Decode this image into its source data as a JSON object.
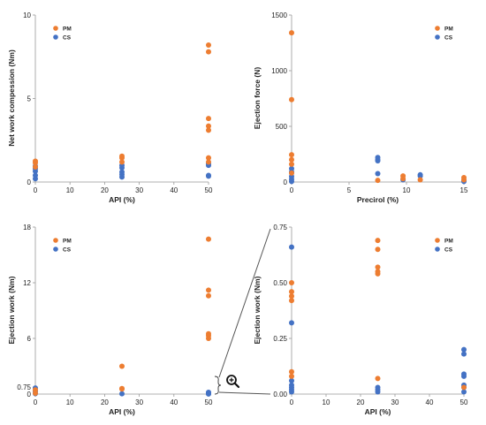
{
  "colors": {
    "pm": "#ED7D31",
    "cs": "#4472C4",
    "axis": "#999999"
  },
  "chart_data": [
    {
      "type": "scatter",
      "xlabel": "API (%)",
      "ylabel": "Net work compession (Nm)",
      "xlim": [
        0,
        50
      ],
      "ylim": [
        0,
        10
      ],
      "xticks": [
        0,
        10,
        20,
        30,
        40,
        50
      ],
      "yticks": [
        0,
        5,
        10
      ],
      "legend_position": "top-left",
      "series": [
        {
          "name": "PM",
          "color": "#ED7D31",
          "points": [
            [
              0,
              1.15
            ],
            [
              0,
              1.25
            ],
            [
              0,
              0.9
            ],
            [
              25,
              1.2
            ],
            [
              25,
              1.45
            ],
            [
              25,
              1.55
            ],
            [
              50,
              8.2
            ],
            [
              50,
              7.8
            ],
            [
              50,
              3.8
            ],
            [
              50,
              3.35
            ],
            [
              50,
              3.1
            ],
            [
              50,
              1.45
            ],
            [
              50,
              1.2
            ]
          ]
        },
        {
          "name": "CS",
          "color": "#4472C4",
          "points": [
            [
              0,
              0.95
            ],
            [
              0,
              0.8
            ],
            [
              0,
              0.65
            ],
            [
              0,
              0.4
            ],
            [
              0,
              0.2
            ],
            [
              25,
              1.0
            ],
            [
              25,
              0.85
            ],
            [
              25,
              0.6
            ],
            [
              25,
              0.45
            ],
            [
              25,
              0.3
            ],
            [
              50,
              1.1
            ],
            [
              50,
              1.0
            ],
            [
              50,
              0.4
            ],
            [
              50,
              0.35
            ]
          ]
        }
      ]
    },
    {
      "type": "scatter",
      "xlabel": "Precirol (%)",
      "ylabel": "Ejection force (N)",
      "xlim": [
        0,
        15
      ],
      "ylim": [
        0,
        1500
      ],
      "xticks": [
        0,
        5,
        10,
        15
      ],
      "yticks": [
        0,
        500,
        1000,
        1500
      ],
      "legend_position": "top-right",
      "series": [
        {
          "name": "PM",
          "color": "#ED7D31",
          "points": [
            [
              0,
              1340
            ],
            [
              0,
              740
            ],
            [
              0,
              245
            ],
            [
              0,
              200
            ],
            [
              0,
              160
            ],
            [
              0,
              80
            ],
            [
              7.5,
              15
            ],
            [
              9.7,
              55
            ],
            [
              9.7,
              30
            ],
            [
              11.2,
              20
            ],
            [
              15,
              40
            ],
            [
              15,
              20
            ]
          ]
        },
        {
          "name": "CS",
          "color": "#4472C4",
          "points": [
            [
              0,
              120
            ],
            [
              0,
              90
            ],
            [
              0,
              50
            ],
            [
              0,
              25
            ],
            [
              0,
              5
            ],
            [
              7.5,
              220
            ],
            [
              7.5,
              200
            ],
            [
              7.5,
              190
            ],
            [
              7.5,
              75
            ],
            [
              9.7,
              20
            ],
            [
              11.2,
              65
            ],
            [
              11.2,
              55
            ],
            [
              15,
              15
            ],
            [
              15,
              5
            ]
          ]
        }
      ]
    },
    {
      "type": "scatter",
      "xlabel": "API (%)",
      "ylabel": "Ejection work (Nm)",
      "xlim": [
        0,
        50
      ],
      "ylim": [
        0,
        18
      ],
      "xticks": [
        0,
        10,
        20,
        30,
        40,
        50
      ],
      "yticks": [
        0,
        0.75,
        6,
        12,
        18
      ],
      "legend_position": "top-left",
      "series": [
        {
          "name": "PM",
          "color": "#ED7D31",
          "points": [
            [
              0,
              0.45
            ],
            [
              0,
              0.1
            ],
            [
              25,
              3.0
            ],
            [
              25,
              0.6
            ],
            [
              25,
              0.55
            ],
            [
              50,
              16.7
            ],
            [
              50,
              11.2
            ],
            [
              50,
              10.6
            ],
            [
              50,
              6.5
            ],
            [
              50,
              6.3
            ],
            [
              50,
              6.0
            ]
          ]
        },
        {
          "name": "CS",
          "color": "#4472C4",
          "points": [
            [
              0,
              0.65
            ],
            [
              0,
              0.3
            ],
            [
              0,
              0.05
            ],
            [
              25,
              0.03
            ],
            [
              50,
              0.19
            ],
            [
              50,
              0.15
            ],
            [
              50,
              0.07
            ],
            [
              50,
              0.03
            ],
            [
              50,
              0.01
            ]
          ]
        }
      ]
    },
    {
      "type": "scatter",
      "xlabel": "API (%)",
      "ylabel": "Ejection work (Nm)",
      "xlim": [
        0,
        50
      ],
      "ylim": [
        0,
        0.75
      ],
      "xticks": [
        0,
        10,
        20,
        30,
        40,
        50
      ],
      "yticks": [
        0.0,
        0.25,
        0.5,
        0.75
      ],
      "yticklabels": [
        "0.00",
        "0.25",
        "0.50",
        "0.75"
      ],
      "legend_position": "top-right",
      "series": [
        {
          "name": "PM",
          "color": "#ED7D31",
          "points": [
            [
              0,
              0.5
            ],
            [
              0,
              0.46
            ],
            [
              0,
              0.44
            ],
            [
              0,
              0.42
            ],
            [
              0,
              0.1
            ],
            [
              0,
              0.08
            ],
            [
              25,
              0.69
            ],
            [
              25,
              0.65
            ],
            [
              25,
              0.57
            ],
            [
              25,
              0.55
            ],
            [
              25,
              0.54
            ],
            [
              25,
              0.07
            ],
            [
              50,
              0.03
            ]
          ]
        },
        {
          "name": "CS",
          "color": "#4472C4",
          "points": [
            [
              0,
              0.66
            ],
            [
              0,
              0.32
            ],
            [
              0,
              0.06
            ],
            [
              0,
              0.04
            ],
            [
              0,
              0.03
            ],
            [
              0,
              0.02
            ],
            [
              0,
              0.01
            ],
            [
              25,
              0.03
            ],
            [
              25,
              0.02
            ],
            [
              25,
              0.01
            ],
            [
              50,
              0.2
            ],
            [
              50,
              0.18
            ],
            [
              50,
              0.09
            ],
            [
              50,
              0.08
            ],
            [
              50,
              0.04
            ],
            [
              50,
              0.03
            ],
            [
              50,
              0.01
            ]
          ]
        }
      ]
    }
  ]
}
